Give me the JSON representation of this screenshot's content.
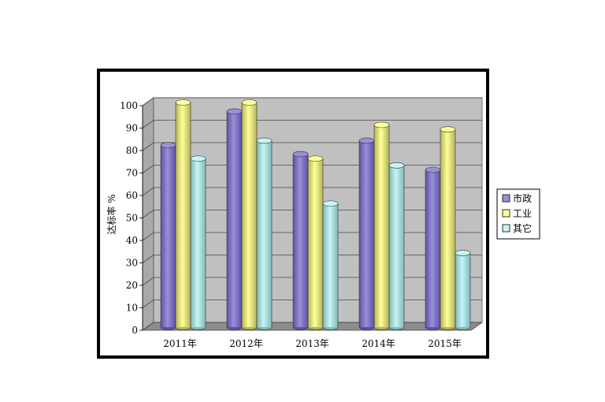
{
  "chart_data": {
    "type": "bar",
    "title": "",
    "xlabel": "",
    "ylabel": "达标率 %",
    "ylim": [
      0,
      100
    ],
    "yticks": [
      0,
      10,
      20,
      30,
      40,
      50,
      60,
      70,
      80,
      90,
      100
    ],
    "categories": [
      "2011年",
      "2012年",
      "2013年",
      "2014年",
      "2015年"
    ],
    "series": [
      {
        "name": "市政",
        "values": [
          81,
          96,
          77,
          83,
          70
        ]
      },
      {
        "name": "工业",
        "values": [
          100,
          100,
          75,
          90,
          88
        ]
      },
      {
        "name": "其它",
        "values": [
          75,
          83,
          55,
          72,
          33
        ]
      }
    ],
    "legend_position": "right",
    "grid": true,
    "colors": {
      "series": [
        "#9a8fd8",
        "#ffff99",
        "#c8f4f4"
      ],
      "series_dark": [
        "#5d52a6",
        "#b3b35a",
        "#7fb9b9"
      ],
      "wall": "#c0c0c0",
      "floor": "#8c8c8c"
    }
  }
}
